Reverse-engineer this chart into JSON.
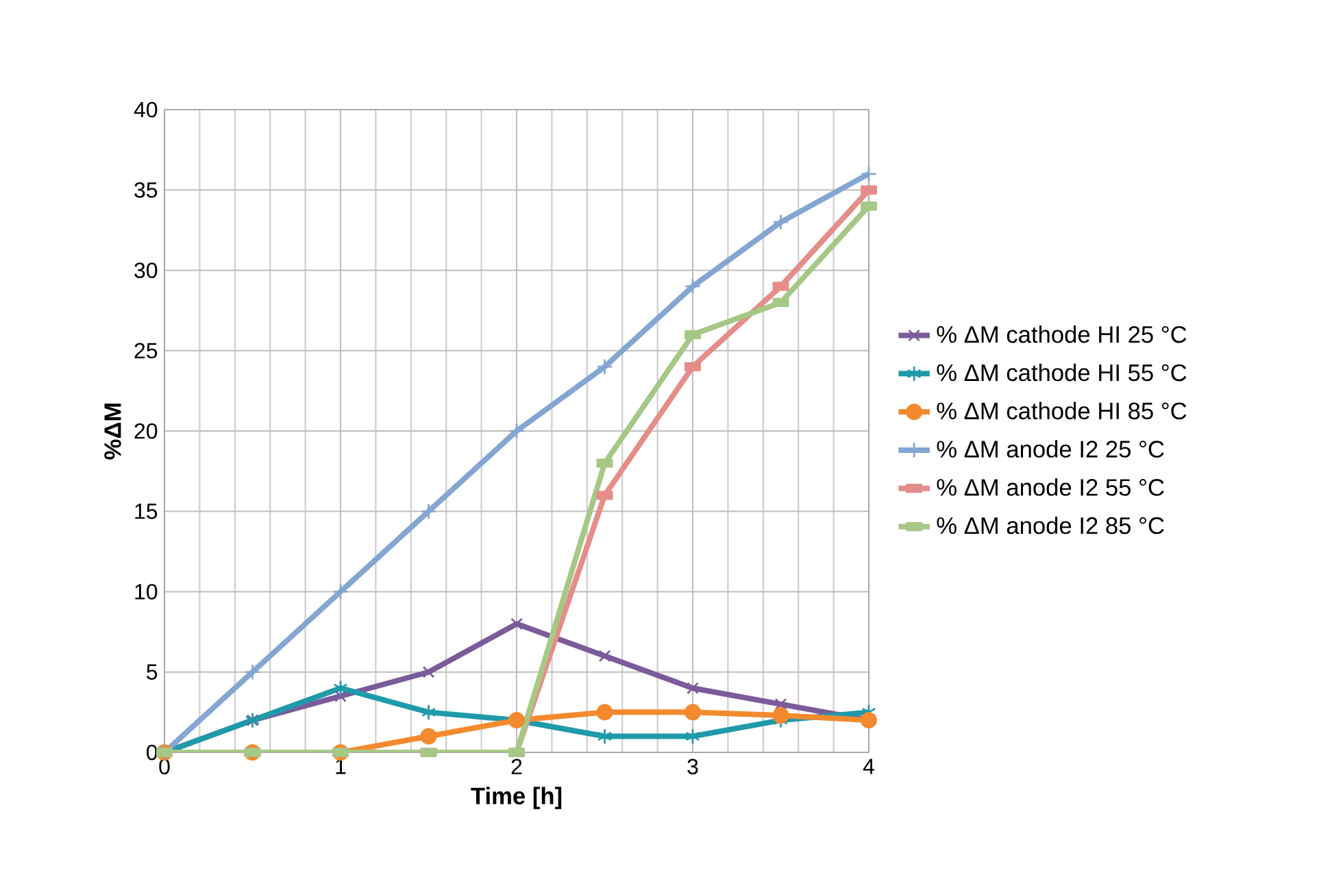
{
  "chart_data": {
    "type": "line",
    "xlabel": "Time [h]",
    "ylabel": "%ΔM",
    "x": [
      0,
      0.5,
      1,
      1.5,
      2,
      2.5,
      3,
      3.5,
      4
    ],
    "series": [
      {
        "name": "% ΔM cathode HI 25 °C",
        "color": "#7b5b9a",
        "marker": "cross",
        "values": [
          0,
          2,
          3.5,
          5,
          8,
          6,
          4,
          3,
          2
        ]
      },
      {
        "name": "% ΔM cathode HI 55 °C",
        "color": "#1f9aaa",
        "marker": "cross",
        "values": [
          0,
          2,
          4,
          2.5,
          2,
          1,
          1,
          2,
          2.5
        ]
      },
      {
        "name": "% ΔM cathode HI 85 °C",
        "color": "#f38a2e",
        "marker": "circle",
        "values": [
          0,
          0,
          0,
          1,
          2,
          2.5,
          2.5,
          2.3,
          2
        ]
      },
      {
        "name": "% ΔM anode I2 25 °C",
        "color": "#84a6d2",
        "marker": "plus",
        "values": [
          0,
          5,
          10,
          15,
          20,
          24,
          29,
          33,
          36
        ]
      },
      {
        "name": "% ΔM anode I2 55 °C",
        "color": "#e58d8a",
        "marker": "square",
        "values": [
          0,
          0,
          0,
          0,
          0,
          16,
          24,
          29,
          35
        ]
      },
      {
        "name": "% ΔM anode I2 85 °C",
        "color": "#a6c886",
        "marker": "square",
        "values": [
          0,
          0,
          0,
          0,
          0,
          18,
          26,
          28,
          34
        ]
      }
    ],
    "xlim": [
      0,
      4
    ],
    "xticks": [
      0,
      1,
      2,
      3,
      4
    ],
    "ylim": [
      0,
      40
    ],
    "yticks": [
      0,
      5,
      10,
      15,
      20,
      25,
      30,
      35,
      40
    ],
    "grid": true,
    "legend": "right",
    "line_style": "solid"
  }
}
